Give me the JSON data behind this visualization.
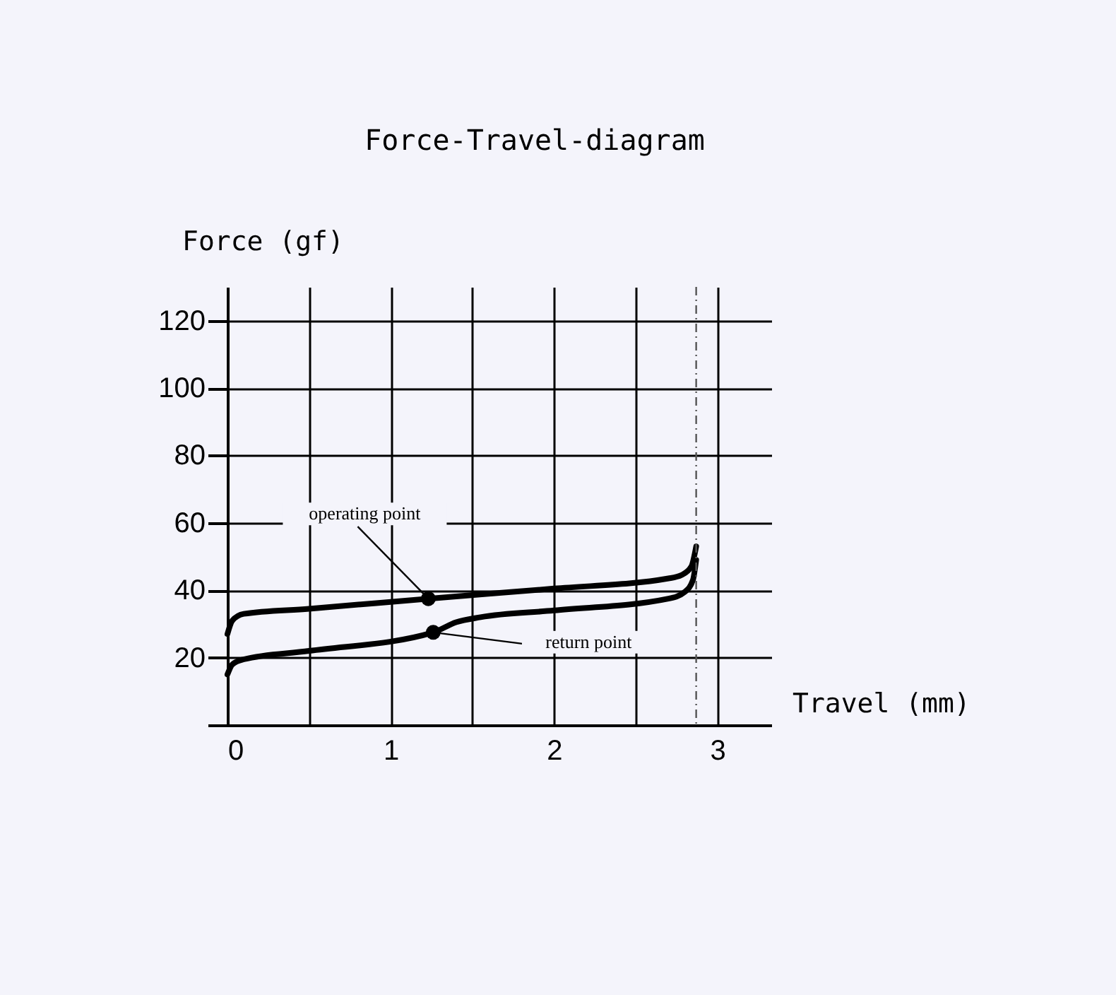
{
  "chart_data": {
    "type": "line",
    "title": "Force-Travel-diagram",
    "xlabel": "Travel (mm)",
    "ylabel": "Force (gf)",
    "series": [
      {
        "color": "#000000",
        "x": [
          0,
          0.03,
          0.1,
          0.5,
          1.23,
          2.0,
          2.7,
          2.78,
          2.84,
          2.87
        ],
        "values": [
          27,
          31,
          33,
          34.5,
          37.5,
          40.5,
          43.5,
          44.5,
          47,
          53
        ]
      },
      {
        "color": "#000000",
        "x": [
          0,
          0.03,
          0.1,
          0.5,
          1.26,
          1.4,
          1.55,
          2.0,
          2.7,
          2.8,
          2.85,
          2.87
        ],
        "values": [
          15,
          18,
          19.5,
          22,
          27.5,
          30.5,
          32,
          34,
          37.5,
          39.5,
          43,
          49
        ]
      },
      {
        "type": "scatter",
        "marker": "circle",
        "color": "#000000",
        "x": [
          1.23,
          1.26
        ],
        "values": [
          37.5,
          27.5
        ]
      }
    ],
    "xlim": [
      0,
      3.33
    ],
    "ylim": [
      0,
      130
    ],
    "xticks": [
      0,
      {
        "value": 0.5,
        "label": null
      },
      1,
      {
        "value": 1.5,
        "label": null
      },
      2,
      {
        "value": 2.5,
        "label": null
      },
      3
    ],
    "yticks": [
      {
        "value": 0,
        "label": null
      },
      20,
      40,
      60,
      80,
      100,
      120
    ],
    "grid": true,
    "line_style": "solid",
    "ref_lines": [
      {
        "axis": "x",
        "value": 2.87,
        "line_style": "dashed",
        "color": "#555555"
      }
    ],
    "annotations": [
      {
        "text": "operating point",
        "x": 1.23,
        "y": 37.5
      },
      {
        "text": "return point",
        "x": 1.26,
        "y": 27.5
      }
    ]
  }
}
